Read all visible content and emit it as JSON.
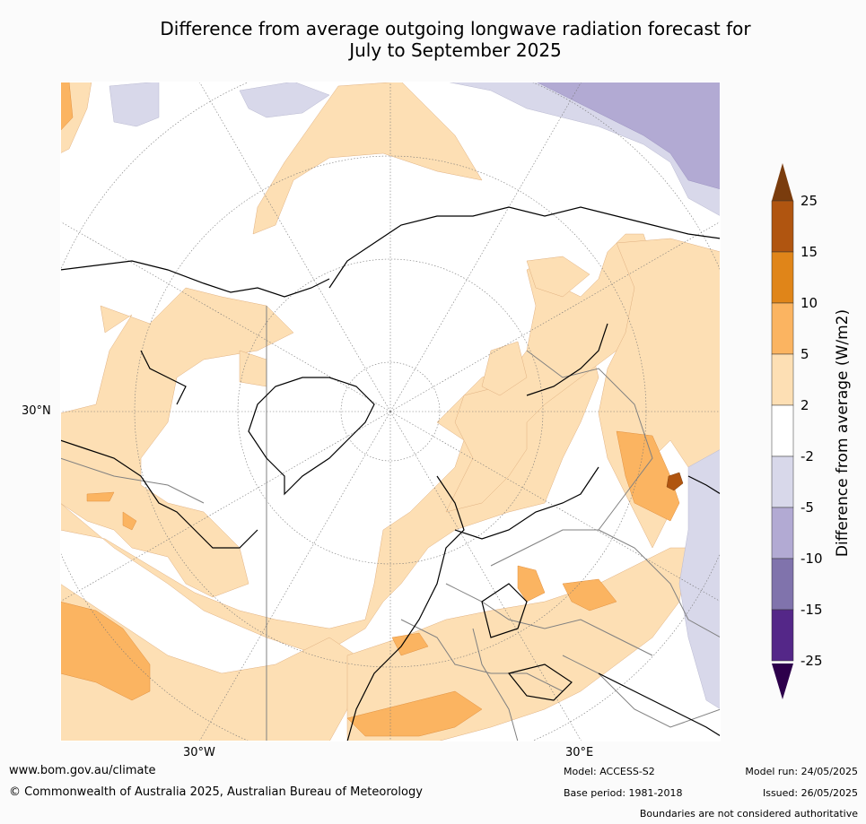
{
  "title_line1": "Difference from average outgoing longwave radiation forecast for",
  "title_line2": "July to September 2025",
  "graticule_labels": {
    "lat": "30°N",
    "lon_west": "30°W",
    "lon_east": "30°E"
  },
  "colorbar": {
    "title": "Difference from average (W/m2)",
    "ticks": [
      "25",
      "15",
      "10",
      "5",
      "2",
      "-2",
      "-5",
      "-10",
      "-15",
      "-25"
    ],
    "colors": [
      "#7a3c0d",
      "#b05510",
      "#e08519",
      "#fbb461",
      "#fddfb4",
      "#ffffff",
      "#d8d8ea",
      "#b2aad3",
      "#8073ac",
      "#542788",
      "#2d004b"
    ]
  },
  "footer": {
    "url": "www.bom.gov.au/climate",
    "copyright": "© Commonwealth of Australia 2025, Australian Bureau of Meteorology",
    "model": "Model: ACCESS-S2",
    "base_period": "Base period: 1981-2018",
    "model_run": "Model run: 24/05/2025",
    "issued": "Issued: 26/05/2025",
    "disclaimer": "Boundaries are not considered authoritative"
  }
}
